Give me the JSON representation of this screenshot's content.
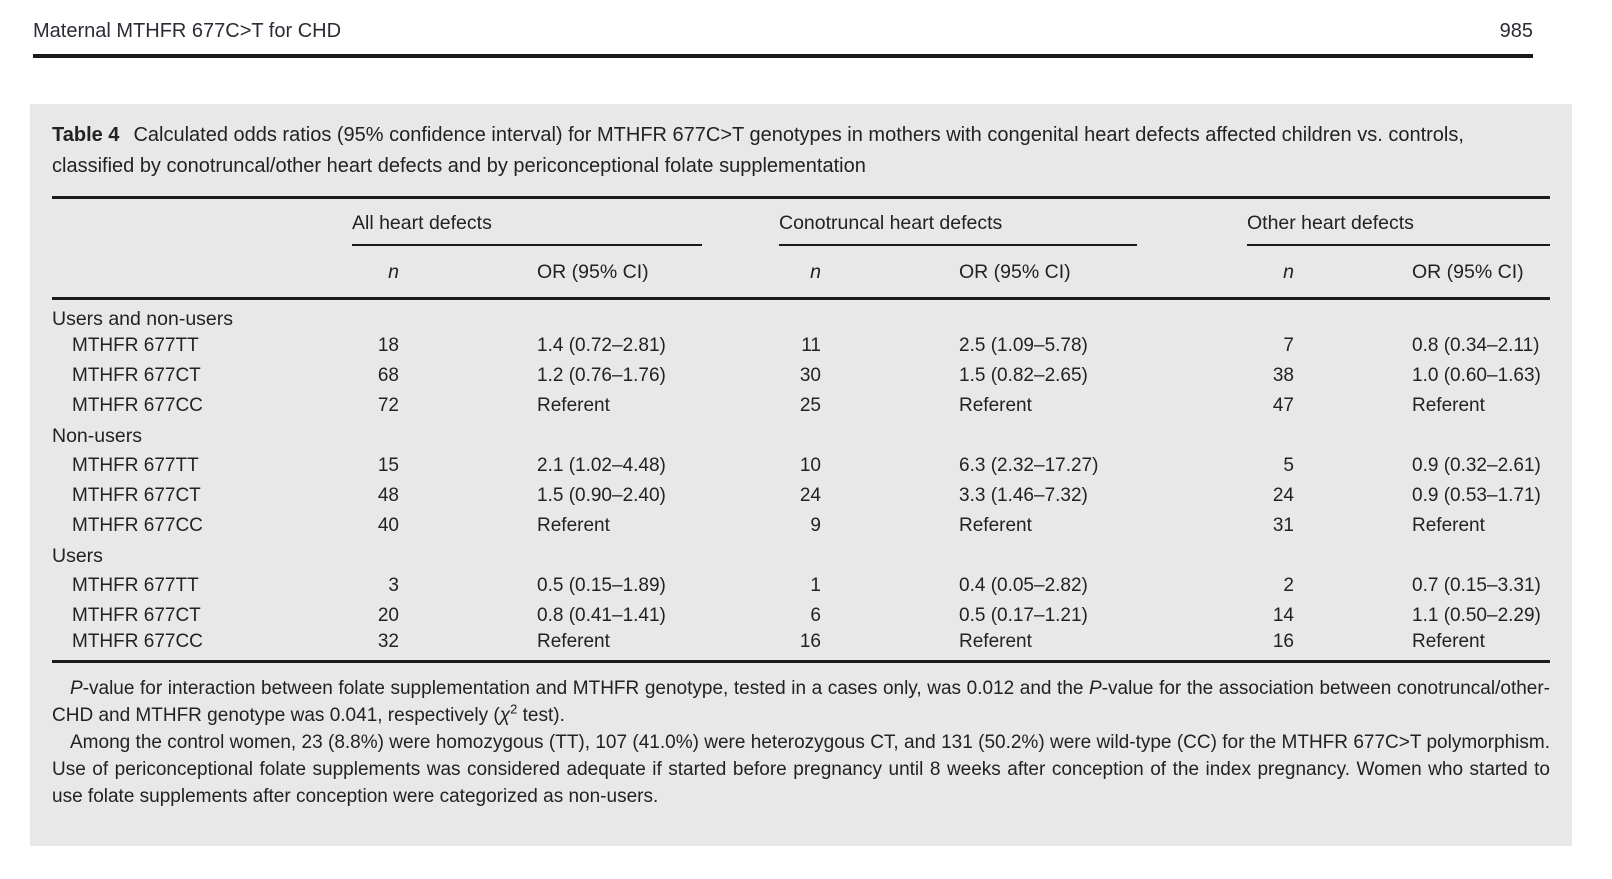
{
  "colors": {
    "panel_bg": "#e8e8e8",
    "text": "#222226",
    "head_text": "#2b2b33",
    "rule": "#1b1b1b"
  },
  "page": {
    "running_head": "Maternal MTHFR 677C>T for CHD",
    "page_number": "985"
  },
  "table": {
    "label": "Table 4",
    "caption": "Calculated odds ratios (95% confidence interval) for MTHFR 677C>T genotypes in mothers with congenital heart defects affected children vs. controls, classified by conotruncal/other heart defects and by periconceptional folate supplementation",
    "groups": [
      {
        "label": "All heart defects"
      },
      {
        "label": "Conotruncal heart defects"
      },
      {
        "label": "Other heart defects"
      }
    ],
    "subheaders": {
      "n": "n",
      "or": "OR (95% CI)"
    },
    "sections": [
      {
        "label": "Users and non-users",
        "rows": [
          [
            "MTHFR 677TT",
            "18",
            "1.4 (0.72–2.81)",
            "11",
            "2.5 (1.09–5.78)",
            "7",
            "0.8 (0.34–2.11)"
          ],
          [
            "MTHFR 677CT",
            "68",
            "1.2 (0.76–1.76)",
            "30",
            "1.5 (0.82–2.65)",
            "38",
            "1.0 (0.60–1.63)"
          ],
          [
            "MTHFR 677CC",
            "72",
            "Referent",
            "25",
            "Referent",
            "47",
            "Referent"
          ]
        ]
      },
      {
        "label": "Non-users",
        "rows": [
          [
            "MTHFR 677TT",
            "15",
            "2.1 (1.02–4.48)",
            "10",
            "6.3 (2.32–17.27)",
            "5",
            "0.9 (0.32–2.61)"
          ],
          [
            "MTHFR 677CT",
            "48",
            "1.5 (0.90–2.40)",
            "24",
            "3.3 (1.46–7.32)",
            "24",
            "0.9 (0.53–1.71)"
          ],
          [
            "MTHFR 677CC",
            "40",
            "Referent",
            "9",
            "Referent",
            "31",
            "Referent"
          ]
        ]
      },
      {
        "label": "Users",
        "rows": [
          [
            "MTHFR 677TT",
            "3",
            "0.5 (0.15–1.89)",
            "1",
            "0.4 (0.05–2.82)",
            "2",
            "0.7 (0.15–3.31)"
          ],
          [
            "MTHFR 677CT",
            "20",
            "0.8 (0.41–1.41)",
            "6",
            "0.5 (0.17–1.21)",
            "14",
            "1.1 (0.50–2.29)"
          ],
          [
            "MTHFR 677CC",
            "32",
            "Referent",
            "16",
            "Referent",
            "16",
            "Referent"
          ]
        ]
      }
    ],
    "footnote1": {
      "p1": "P",
      "seg1": "-value for interaction between folate supplementation and MTHFR genotype, tested in a cases only, was 0.012 and the ",
      "p2": "P",
      "seg2": "-value for the association between conotruncal/other-CHD and MTHFR genotype was 0.041, respectively (",
      "chi": "χ",
      "sup": "2",
      "seg3": " test)."
    },
    "footnote2": "Among the control women, 23 (8.8%) were homozygous (TT), 107 (41.0%) were heterozygous CT, and 131 (50.2%) were wild-type (CC) for the MTHFR 677C>T polymorphism. Use of periconceptional folate supplements was considered adequate if started before pregnancy until 8 weeks after conception of the index pregnancy. Women who started to use folate supplements after conception were categorized as non-users."
  }
}
